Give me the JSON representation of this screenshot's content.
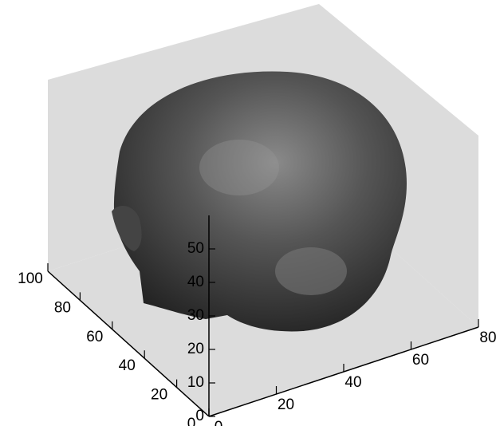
{
  "chart_data": {
    "type": "surface3d",
    "xlim": [
      0,
      80
    ],
    "xticks": [
      0,
      20,
      40,
      60,
      80
    ],
    "ylim": [
      0,
      100
    ],
    "yticks": [
      0,
      20,
      40,
      60,
      80,
      100
    ],
    "zlim": [
      0,
      60
    ],
    "zticks": [
      0,
      10,
      20,
      30,
      40,
      50
    ],
    "color": "#dcdcdc"
  }
}
